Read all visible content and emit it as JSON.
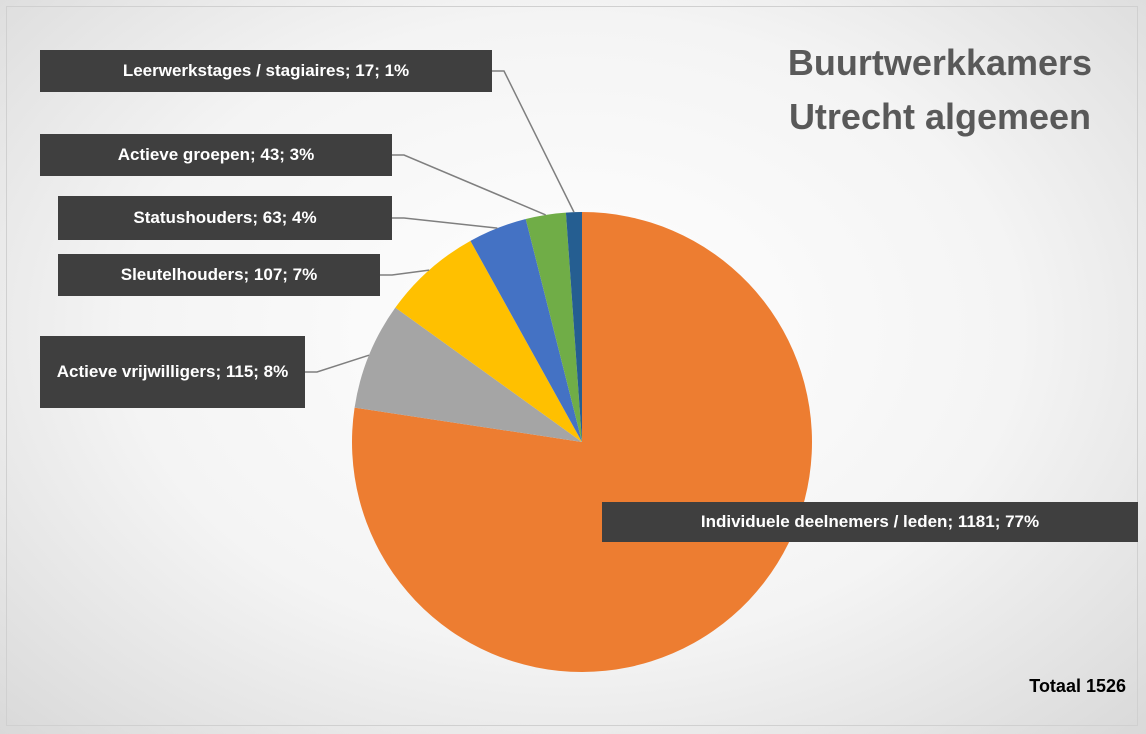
{
  "chart_data": {
    "type": "pie",
    "title": "Buurtwerkkamers Utrecht algemeen",
    "total_label": "Totaal 1526",
    "categories": [
      "Individuele deelnemers / leden",
      "Actieve vrijwilligers",
      "Sleutelhouders",
      "Statushouders",
      "Actieve groepen",
      "Leerwerkstages / stagiaires"
    ],
    "values": [
      1181,
      115,
      107,
      63,
      43,
      17
    ],
    "value_labels": [
      "Individuele deelnemers / leden; 1181; 77%",
      "Actieve vrijwilligers; 115; 8%",
      "Sleutelhouders; 107; 7%",
      "Statushouders; 63; 4%",
      "Actieve groepen; 43; 3%",
      "Leerwerkstages / stagiaires; 17; 1%"
    ],
    "colors": [
      "#ed7d31",
      "#a5a5a5",
      "#ffc000",
      "#4472c4",
      "#70ad47",
      "#255e91"
    ]
  }
}
